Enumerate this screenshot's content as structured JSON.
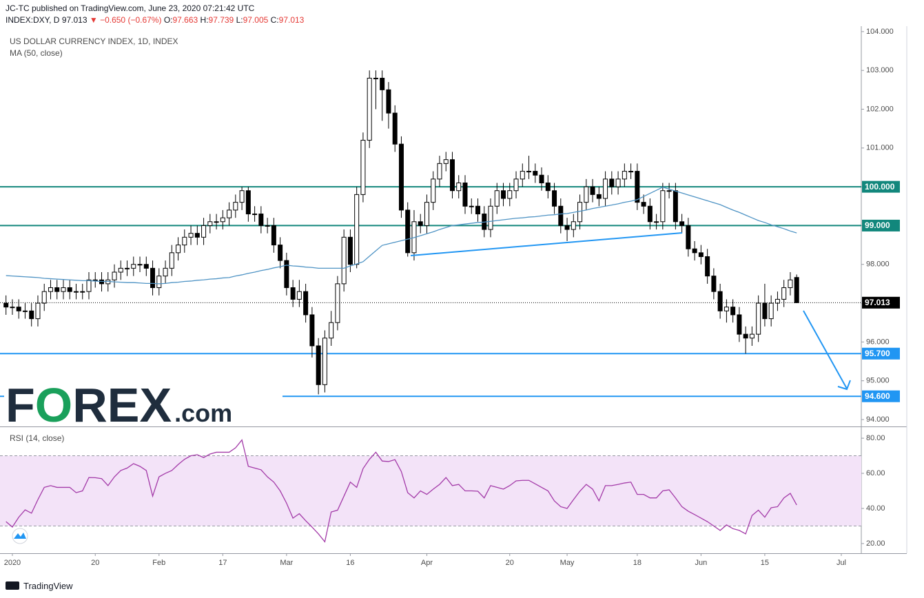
{
  "header": {
    "author_line": "JC-TC published on TradingView.com, June 23, 2020 07:21:42 UTC",
    "symbol": "INDEX:DXY, D",
    "last": "97.013",
    "change": "▼ −0.650 (−0.67%)",
    "ohlc": [
      {
        "label": "O:",
        "value": "97.663"
      },
      {
        "label": "H:",
        "value": "97.739"
      },
      {
        "label": "L:",
        "value": "97.005"
      },
      {
        "label": "C:",
        "value": "97.013"
      }
    ]
  },
  "logo": [
    "F",
    "O",
    "REX",
    ".com"
  ],
  "footer": "TradingView",
  "chart_data": {
    "type": "candlestick",
    "title": "US DOLLAR CURRENCY INDEX, 1D, INDEX",
    "categories": [
      null,
      "2020",
      null,
      null,
      null,
      null,
      null,
      null,
      null,
      null,
      null,
      null,
      null,
      null,
      "20",
      null,
      null,
      null,
      null,
      null,
      null,
      null,
      null,
      null,
      "Feb",
      null,
      null,
      null,
      null,
      null,
      null,
      null,
      null,
      null,
      "17",
      null,
      null,
      null,
      null,
      null,
      null,
      null,
      null,
      null,
      "Mar",
      null,
      null,
      null,
      null,
      null,
      null,
      null,
      null,
      null,
      "16",
      null,
      null,
      null,
      null,
      null,
      null,
      null,
      null,
      null,
      null,
      null,
      "Apr",
      null,
      null,
      null,
      null,
      null,
      null,
      null,
      null,
      null,
      null,
      null,
      null,
      "20",
      null,
      null,
      null,
      null,
      null,
      null,
      null,
      null,
      "May",
      null,
      null,
      null,
      null,
      null,
      null,
      null,
      null,
      null,
      null,
      "18",
      null,
      null,
      null,
      null,
      null,
      null,
      null,
      null,
      null,
      "Jun",
      null,
      null,
      null,
      null,
      null,
      null,
      null,
      null,
      null,
      "15",
      null,
      null,
      null,
      null,
      null,
      null,
      null,
      null,
      null,
      null,
      null,
      "Jul"
    ],
    "open": [
      97.0,
      96.9,
      96.9,
      96.8,
      96.8,
      96.6,
      97.0,
      97.3,
      97.4,
      97.3,
      97.4,
      97.3,
      97.3,
      97.3,
      97.6,
      97.6,
      97.5,
      97.6,
      97.8,
      97.9,
      97.9,
      98.0,
      98.0,
      97.9,
      97.4,
      97.7,
      97.9,
      98.3,
      98.5,
      98.7,
      98.8,
      98.7,
      99.0,
      99.1,
      99.1,
      99.2,
      99.4,
      99.6,
      99.9,
      99.3,
      99.3,
      99.0,
      99.0,
      98.5,
      98.1,
      97.4,
      97.1,
      97.3,
      96.7,
      95.9,
      94.9,
      96.1,
      96.5,
      97.5,
      98.7,
      98.0,
      99.8,
      101.2,
      102.8,
      102.8,
      102.5,
      101.9,
      101.1,
      99.4,
      98.3,
      99.1,
      99.0,
      99.6,
      100.2,
      100.6,
      100.7,
      99.9,
      100.1,
      99.5,
      99.5,
      99.3,
      98.9,
      99.5,
      99.9,
      99.7,
      99.9,
      100.2,
      100.4,
      100.4,
      100.3,
      100.1,
      99.9,
      99.5,
      99.0,
      98.9,
      99.1,
      99.6,
      100.0,
      99.8,
      99.7,
      100.2,
      100.0,
      100.2,
      100.4,
      100.4,
      99.6,
      99.5,
      99.1,
      99.1,
      99.9,
      99.9,
      99.1,
      99.0,
      98.4,
      98.3,
      98.2,
      97.7,
      97.3,
      96.8,
      96.9,
      96.7,
      96.2,
      96.1,
      96.2,
      97.0,
      96.6,
      97.0,
      97.1,
      97.4,
      97.663,
      null,
      null,
      null,
      null,
      null,
      null,
      null
    ],
    "high": [
      97.2,
      97.1,
      97.1,
      97.0,
      97.0,
      97.2,
      97.5,
      97.6,
      97.6,
      97.6,
      97.6,
      97.5,
      97.5,
      97.8,
      97.8,
      97.8,
      97.8,
      98.0,
      98.1,
      98.1,
      98.2,
      98.2,
      98.2,
      98.1,
      97.9,
      98.1,
      98.5,
      98.7,
      98.9,
      99.0,
      99.0,
      99.2,
      99.3,
      99.3,
      99.4,
      99.6,
      99.8,
      100.0,
      100.0,
      99.5,
      99.5,
      99.2,
      99.2,
      98.7,
      98.3,
      97.6,
      97.6,
      97.5,
      96.9,
      96.1,
      96.3,
      96.8,
      97.7,
      98.9,
      98.9,
      100.0,
      101.4,
      103.0,
      103.0,
      103.0,
      102.7,
      102.1,
      101.3,
      99.6,
      99.4,
      99.3,
      99.8,
      100.4,
      100.8,
      100.9,
      100.9,
      100.3,
      100.3,
      99.7,
      99.7,
      99.5,
      99.7,
      100.1,
      100.1,
      100.1,
      100.4,
      100.6,
      100.8,
      100.6,
      100.5,
      100.3,
      100.1,
      99.7,
      99.2,
      99.3,
      99.8,
      100.2,
      100.2,
      100.0,
      100.4,
      100.4,
      100.4,
      100.6,
      100.6,
      100.6,
      99.8,
      99.7,
      99.3,
      100.1,
      100.1,
      100.1,
      99.3,
      99.2,
      98.6,
      98.5,
      98.4,
      97.9,
      97.5,
      97.1,
      97.1,
      96.9,
      96.4,
      96.4,
      97.2,
      97.5,
      97.2,
      97.3,
      97.6,
      97.8,
      97.739,
      null,
      null,
      null,
      null,
      null,
      null,
      null
    ],
    "low": [
      96.7,
      96.7,
      96.6,
      96.6,
      96.4,
      96.4,
      96.8,
      97.1,
      97.1,
      97.1,
      97.1,
      97.1,
      97.1,
      97.1,
      97.4,
      97.3,
      97.3,
      97.4,
      97.6,
      97.7,
      97.7,
      97.8,
      97.7,
      97.2,
      97.2,
      97.5,
      97.7,
      98.1,
      98.3,
      98.5,
      98.5,
      98.5,
      98.8,
      98.9,
      98.9,
      99.0,
      99.2,
      99.4,
      99.1,
      99.1,
      98.8,
      98.8,
      98.3,
      97.9,
      97.2,
      96.9,
      96.9,
      96.5,
      95.6,
      94.65,
      94.7,
      95.9,
      96.3,
      97.3,
      97.8,
      97.9,
      99.6,
      101.0,
      102.0,
      101.7,
      101.5,
      100.9,
      99.2,
      98.2,
      98.1,
      98.8,
      98.8,
      99.4,
      100.0,
      100.4,
      99.7,
      99.7,
      99.3,
      99.3,
      99.1,
      98.7,
      98.7,
      99.3,
      99.5,
      99.5,
      99.7,
      100.0,
      100.2,
      100.1,
      99.9,
      99.7,
      99.3,
      98.8,
      98.6,
      98.7,
      98.9,
      99.4,
      99.6,
      99.5,
      99.5,
      99.8,
      99.8,
      100.0,
      100.2,
      99.4,
      99.3,
      98.9,
      98.9,
      98.9,
      99.7,
      98.9,
      98.8,
      98.2,
      98.1,
      98.0,
      97.5,
      97.1,
      96.6,
      96.5,
      96.5,
      96.0,
      95.7,
      95.9,
      96.0,
      96.4,
      96.4,
      96.8,
      96.9,
      97.2,
      97.005,
      null,
      null,
      null,
      null,
      null,
      null,
      null
    ],
    "close": [
      96.9,
      96.9,
      96.8,
      96.8,
      96.6,
      97.0,
      97.3,
      97.4,
      97.3,
      97.4,
      97.3,
      97.3,
      97.3,
      97.6,
      97.6,
      97.5,
      97.6,
      97.8,
      97.9,
      97.9,
      98.0,
      98.0,
      97.9,
      97.4,
      97.7,
      97.9,
      98.3,
      98.5,
      98.7,
      98.8,
      98.7,
      99.0,
      99.1,
      99.1,
      99.2,
      99.4,
      99.6,
      99.9,
      99.3,
      99.3,
      99.0,
      99.0,
      98.5,
      98.1,
      97.4,
      97.1,
      97.3,
      96.7,
      95.9,
      94.9,
      96.1,
      96.5,
      97.5,
      98.7,
      98.0,
      99.8,
      101.2,
      102.8,
      102.8,
      102.5,
      101.9,
      101.1,
      99.4,
      98.3,
      99.1,
      99.0,
      99.6,
      100.2,
      100.6,
      100.7,
      99.9,
      100.1,
      99.5,
      99.5,
      99.3,
      98.9,
      99.5,
      99.9,
      99.7,
      99.9,
      100.2,
      100.4,
      100.4,
      100.3,
      100.1,
      99.9,
      99.5,
      99.0,
      98.9,
      99.1,
      99.6,
      100.0,
      99.8,
      99.7,
      100.2,
      100.0,
      100.2,
      100.4,
      100.4,
      99.6,
      99.5,
      99.1,
      99.1,
      99.9,
      99.9,
      99.1,
      99.0,
      98.4,
      98.3,
      98.2,
      97.7,
      97.3,
      96.8,
      96.9,
      96.7,
      96.2,
      96.1,
      96.2,
      97.0,
      96.6,
      97.0,
      97.1,
      97.4,
      97.6,
      97.013,
      null,
      null,
      null,
      null,
      null,
      null,
      null
    ],
    "up_color": "#ffffff",
    "down_color": "#000000",
    "ylim": [
      93.84,
      104.14
    ],
    "yticks": [
      {
        "value": 94,
        "label": "94.000"
      },
      {
        "value": 95,
        "label": "95.000"
      },
      {
        "value": 96,
        "label": "96.000"
      },
      {
        "value": 97,
        "label": "97.000"
      },
      {
        "value": 98,
        "label": "98.000"
      },
      {
        "value": 99,
        "label": "99.000"
      },
      {
        "value": 100,
        "label": "100.000"
      },
      {
        "value": 101,
        "label": "101.000"
      },
      {
        "value": 102,
        "label": "102.000"
      },
      {
        "value": 103,
        "label": "103.000"
      },
      {
        "value": 104,
        "label": "104.000"
      }
    ],
    "grid": false,
    "ma": {
      "name": "MA (50, close)",
      "color": "#4e93c4",
      "values": [
        97.71,
        97.7,
        97.69,
        97.68,
        97.67,
        97.66,
        97.64,
        97.63,
        97.62,
        97.61,
        97.6,
        97.59,
        97.58,
        97.58,
        97.57,
        97.56,
        97.56,
        97.55,
        97.54,
        97.53,
        97.53,
        97.52,
        97.51,
        97.51,
        97.5,
        97.51,
        97.53,
        97.54,
        97.56,
        97.57,
        97.59,
        97.6,
        97.62,
        97.63,
        97.65,
        97.66,
        97.7,
        97.73,
        97.77,
        97.8,
        97.84,
        97.87,
        97.91,
        97.94,
        97.98,
        97.96,
        97.95,
        97.93,
        97.92,
        97.9,
        97.9,
        97.9,
        97.9,
        97.9,
        97.96,
        98.01,
        98.07,
        98.21,
        98.35,
        98.49,
        98.53,
        98.57,
        98.61,
        98.65,
        98.69,
        98.74,
        98.79,
        98.84,
        98.9,
        98.95,
        99.0,
        99.02,
        99.04,
        99.06,
        99.08,
        99.09,
        99.11,
        99.13,
        99.15,
        99.17,
        99.19,
        99.2,
        99.22,
        99.23,
        99.25,
        99.27,
        99.28,
        99.3,
        99.31,
        99.34,
        99.37,
        99.4,
        99.44,
        99.47,
        99.5,
        99.53,
        99.56,
        99.6,
        99.63,
        99.67,
        99.75,
        99.83,
        99.91,
        99.99,
        99.94,
        99.89,
        99.84,
        99.79,
        99.74,
        99.69,
        99.64,
        99.59,
        99.54,
        99.47,
        99.4,
        99.34,
        99.27,
        99.2,
        99.13,
        99.08,
        99.02,
        98.97,
        98.92,
        98.86,
        98.81,
        null,
        null,
        null,
        null,
        null,
        null,
        null
      ]
    },
    "levels": [
      {
        "value": 100,
        "label": "100.000",
        "color": "#12877c"
      },
      {
        "value": 99,
        "label": "99.000",
        "color": "#12877c"
      },
      {
        "value": 95.7,
        "label": "95.700",
        "color": "#2196f3"
      },
      {
        "value": 94.6,
        "label": "94.600",
        "color": "#2196f3"
      }
    ],
    "rsi": {
      "name": "RSI (14, close)",
      "color": "#a33aa8",
      "values": [
        32.5,
        29.4,
        35,
        39.2,
        37.3,
        45,
        52,
        53,
        52,
        52,
        52,
        49,
        50,
        57.6,
        57.5,
        57,
        53,
        58,
        61.6,
        63,
        65.5,
        64,
        61.6,
        47,
        58,
        60,
        61.6,
        65,
        68,
        70,
        70.6,
        69,
        71,
        72,
        72,
        72,
        74.5,
        79,
        64,
        63,
        62,
        58,
        55,
        50,
        43,
        34.5,
        37,
        33,
        29.4,
        25.5,
        21,
        38,
        39,
        47,
        55,
        52,
        62.7,
        68,
        72,
        67,
        66.7,
        67.8,
        61,
        49,
        46,
        50,
        48,
        51,
        53.7,
        57.6,
        53,
        53.7,
        50,
        50,
        49.8,
        46,
        53,
        52,
        51,
        53,
        55.7,
        56,
        56,
        54,
        52,
        50,
        44.3,
        41,
        40,
        45,
        49.8,
        53.7,
        51,
        44.3,
        53,
        53,
        53.7,
        54.5,
        55,
        48,
        48,
        46,
        46,
        50,
        50.6,
        46,
        41,
        38.4,
        36.5,
        34.5,
        32.5,
        30,
        27.5,
        30.6,
        28.5,
        27.5,
        25.5,
        36,
        39,
        35,
        40.4,
        41,
        46,
        48.6,
        42,
        null,
        null,
        null,
        null,
        null,
        null,
        null
      ],
      "bands": [
        30,
        70
      ],
      "band_color": "#f3e3f8",
      "ylim": [
        14.5,
        86.3
      ],
      "yticks": [
        {
          "value": 20,
          "label": "20.00"
        },
        {
          "value": 40,
          "label": "40.00"
        },
        {
          "value": 60,
          "label": "60.00"
        },
        {
          "value": 80,
          "label": "80.00"
        }
      ]
    }
  }
}
